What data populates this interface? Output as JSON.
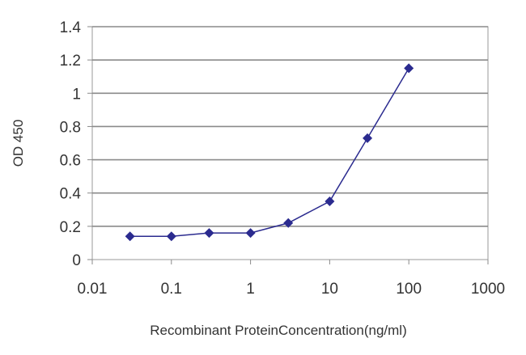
{
  "chart_data": {
    "type": "line",
    "title": "",
    "xlabel": "Recombinant ProteinConcentration(ng/ml)",
    "ylabel": "OD 450",
    "x_scale": "log",
    "xlim": [
      0.01,
      1000
    ],
    "ylim": [
      0,
      1.4
    ],
    "x_ticks": [
      "0.01",
      "0.1",
      "1",
      "10",
      "100",
      "1000"
    ],
    "y_ticks": [
      "0",
      "0.2",
      "0.4",
      "0.6",
      "0.8",
      "1",
      "1.2",
      "1.4"
    ],
    "grid": "horizontal",
    "legend": "none",
    "series": [
      {
        "color": "#2b2b8f",
        "marker": "diamond",
        "x": [
          0.03,
          0.1,
          0.3,
          1,
          3,
          10,
          30,
          100
        ],
        "y": [
          0.14,
          0.14,
          0.16,
          0.16,
          0.22,
          0.35,
          0.73,
          1.15
        ]
      }
    ]
  }
}
